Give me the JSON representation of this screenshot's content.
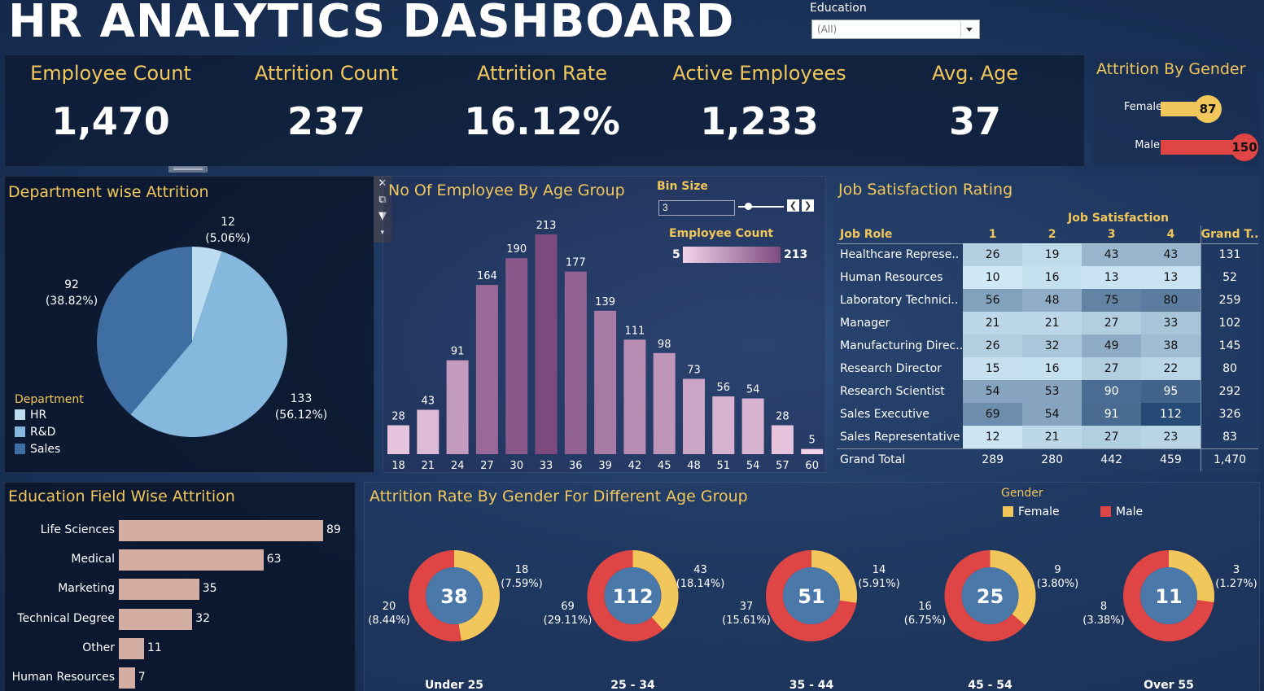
{
  "header": {
    "title": "HR ANALYTICS DASHBOARD",
    "filter_label": "Education",
    "filter_value": "(All)"
  },
  "kpis": [
    {
      "label": "Employee Count",
      "value": "1,470"
    },
    {
      "label": "Attrition Count",
      "value": "237"
    },
    {
      "label": "Attrition Rate",
      "value": "16.12%"
    },
    {
      "label": "Active Employees",
      "value": "1,233"
    },
    {
      "label": "Avg. Age",
      "value": "37"
    }
  ],
  "attrition_by_gender": {
    "title": "Attrition By Gender",
    "rows": [
      {
        "label": "Female",
        "value": "87",
        "amount": 87,
        "color": "#f1c65a"
      },
      {
        "label": "Male",
        "value": "150",
        "amount": 150,
        "color": "#e04545"
      }
    ]
  },
  "department": {
    "title": "Department wise Attrition",
    "legend_title": "Department",
    "legend": [
      {
        "label": "HR",
        "color": "#bcdcf0"
      },
      {
        "label": "R&D",
        "color": "#86b7dd"
      },
      {
        "label": "Sales",
        "color": "#3f6ea3"
      }
    ],
    "slice_labels": [
      {
        "count": "12",
        "pct": "(5.06%)"
      },
      {
        "count": "133",
        "pct": "(56.12%)"
      },
      {
        "count": "92",
        "pct": "(38.82%)"
      }
    ]
  },
  "age_group": {
    "title": "No Of Employee By Age Group",
    "bin_label": "Bin Size",
    "bin_value": "3",
    "legend_title": "Employee Count",
    "legend_min": "5",
    "legend_max": "213"
  },
  "job_satisfaction": {
    "title": "Job Satisfaction Rating",
    "column_group": "Job Satisfaction",
    "row_header": "Job Role",
    "columns": [
      "1",
      "2",
      "3",
      "4"
    ],
    "total_header": "Grand T..",
    "rows": [
      {
        "role": "Healthcare Represe..",
        "values": [
          "26",
          "19",
          "43",
          "43"
        ],
        "total": "131"
      },
      {
        "role": "Human Resources",
        "values": [
          "10",
          "16",
          "13",
          "13"
        ],
        "total": "52"
      },
      {
        "role": "Laboratory Technici..",
        "values": [
          "56",
          "48",
          "75",
          "80"
        ],
        "total": "259"
      },
      {
        "role": "Manager",
        "values": [
          "21",
          "21",
          "27",
          "33"
        ],
        "total": "102"
      },
      {
        "role": "Manufacturing Direc..",
        "values": [
          "26",
          "32",
          "49",
          "38"
        ],
        "total": "145"
      },
      {
        "role": "Research Director",
        "values": [
          "15",
          "16",
          "27",
          "22"
        ],
        "total": "80"
      },
      {
        "role": "Research Scientist",
        "values": [
          "54",
          "53",
          "90",
          "95"
        ],
        "total": "292"
      },
      {
        "role": "Sales Executive",
        "values": [
          "69",
          "54",
          "91",
          "112"
        ],
        "total": "326"
      },
      {
        "role": "Sales Representative",
        "values": [
          "12",
          "21",
          "27",
          "23"
        ],
        "total": "83"
      }
    ],
    "grand_total": {
      "label": "Grand Total",
      "values": [
        "289",
        "280",
        "442",
        "459"
      ],
      "total": "1,470"
    }
  },
  "education_field": {
    "title": "Education Field Wise Attrition",
    "rows": [
      {
        "label": "Life Sciences",
        "value": 89
      },
      {
        "label": "Medical",
        "value": 63
      },
      {
        "label": "Marketing",
        "value": 35
      },
      {
        "label": "Technical Degree",
        "value": 32
      },
      {
        "label": "Other",
        "value": 11
      },
      {
        "label": "Human Resources",
        "value": 7
      }
    ]
  },
  "gender_age": {
    "title": "Attrition Rate By Gender For Different Age Group",
    "legend_title": "Gender",
    "legend": [
      {
        "label": "Female",
        "color": "#f1c65a"
      },
      {
        "label": "Male",
        "color": "#e04545"
      }
    ],
    "groups": [
      {
        "name": "Under 25",
        "total": "38",
        "female": 18,
        "male": 20,
        "female_label": "18",
        "female_pct": "(7.59%)",
        "male_label": "20",
        "male_pct": "(8.44%)"
      },
      {
        "name": "25 - 34",
        "total": "112",
        "female": 43,
        "male": 69,
        "female_label": "43",
        "female_pct": "(18.14%)",
        "male_label": "69",
        "male_pct": "(29.11%)"
      },
      {
        "name": "35 - 44",
        "total": "51",
        "female": 14,
        "male": 37,
        "female_label": "14",
        "female_pct": "(5.91%)",
        "male_label": "37",
        "male_pct": "(15.61%)"
      },
      {
        "name": "45 - 54",
        "total": "25",
        "female": 9,
        "male": 16,
        "female_label": "9",
        "female_pct": "(3.80%)",
        "male_label": "16",
        "male_pct": "(6.75%)"
      },
      {
        "name": "Over 55",
        "total": "11",
        "female": 3,
        "male": 8,
        "female_label": "3",
        "female_pct": "(1.27%)",
        "male_label": "8",
        "male_pct": "(3.38%)"
      }
    ]
  },
  "chart_data": [
    {
      "type": "pie",
      "title": "Department wise Attrition",
      "categories": [
        "HR",
        "R&D",
        "Sales"
      ],
      "values": [
        12,
        133,
        92
      ],
      "percent": [
        5.06,
        56.12,
        38.82
      ]
    },
    {
      "type": "bar",
      "title": "No Of Employee By Age Group",
      "categories": [
        "18",
        "21",
        "24",
        "27",
        "30",
        "33",
        "36",
        "39",
        "42",
        "45",
        "48",
        "51",
        "54",
        "57",
        "60"
      ],
      "values": [
        28,
        43,
        91,
        164,
        190,
        213,
        177,
        139,
        111,
        98,
        73,
        56,
        54,
        28,
        5
      ],
      "color_range": [
        5,
        213
      ]
    },
    {
      "type": "bar",
      "title": "Education Field Wise Attrition",
      "categories": [
        "Life Sciences",
        "Medical",
        "Marketing",
        "Technical Degree",
        "Other",
        "Human Resources"
      ],
      "values": [
        89,
        63,
        35,
        32,
        11,
        7
      ],
      "orientation": "horizontal"
    }
  ],
  "colors": {
    "accent": "#f1c65a",
    "female": "#f1c65a",
    "male": "#e04545",
    "pie_hr": "#bcdcf0",
    "pie_rd": "#86b7dd",
    "pie_sales": "#3f6ea3",
    "edu_bar": "#d4ada3",
    "donut_center": "#4a78a8"
  }
}
